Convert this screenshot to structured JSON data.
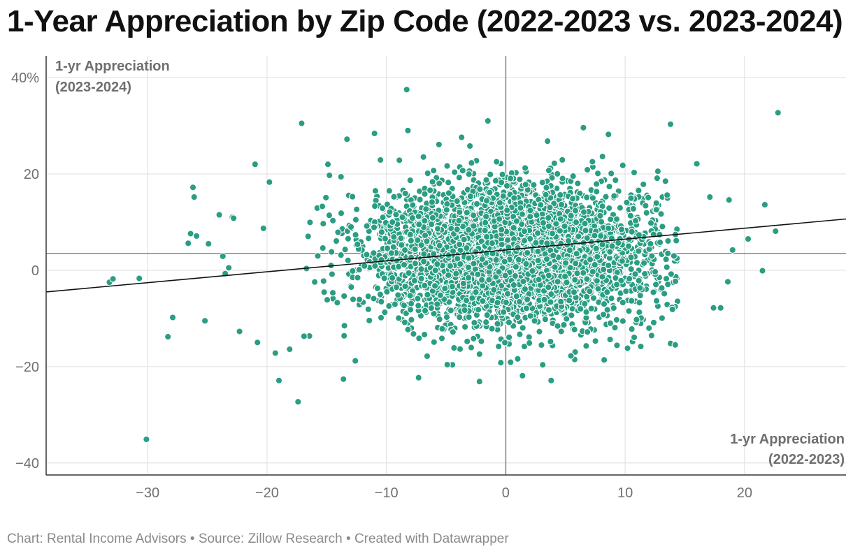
{
  "title": "1-Year Appreciation by Zip Code (2022-2023 vs. 2023-2024)",
  "footer": "Chart: Rental Income Advisors • Source: Zillow Research • Created with Datawrapper",
  "colors": {
    "point_fill": "#2a9d82",
    "point_stroke": "#ffffff",
    "grid": "#e3e3e3",
    "zero_line": "#888888",
    "mean_line": "#888888",
    "trend_line": "#111111",
    "axis": "#333333"
  },
  "chart_data": {
    "type": "scatter",
    "title": "1-Year Appreciation by Zip Code (2022-2023 vs. 2023-2024)",
    "xlabel": [
      "1-yr Appreciation",
      "(2022-2023)"
    ],
    "ylabel": [
      "1-yr Appreciation",
      "(2023-2024)"
    ],
    "xlim": [
      -38.5,
      28.5
    ],
    "ylim": [
      -42.5,
      44.5
    ],
    "x_ticks": [
      -30,
      -20,
      -10,
      0,
      10,
      20
    ],
    "x_tick_labels": [
      "−30",
      "−20",
      "−10",
      "0",
      "10",
      "20"
    ],
    "y_ticks": [
      40,
      20,
      0,
      -20,
      -40
    ],
    "y_tick_labels": [
      "40%",
      "20",
      "0",
      "−20",
      "−40"
    ],
    "grid": true,
    "mean_y_line": 3.5,
    "trend_line": {
      "slope": 0.226,
      "intercept": 4.2
    },
    "cloud": {
      "count": 4200,
      "center_x": 0.5,
      "center_y": 3.5,
      "sd_x": 6.0,
      "sd_y": 7.0,
      "seed": 7
    },
    "points": [
      [
        -33.2,
        -2.5
      ],
      [
        -32.9,
        -1.8
      ],
      [
        -30.7,
        -1.7
      ],
      [
        -30.1,
        -35.1
      ],
      [
        -28.3,
        -13.8
      ],
      [
        -27.9,
        -9.8
      ],
      [
        -26.6,
        5.6
      ],
      [
        -26.4,
        7.6
      ],
      [
        -26.2,
        17.2
      ],
      [
        -26.1,
        15.2
      ],
      [
        -25.9,
        7.1
      ],
      [
        -25.2,
        -10.5
      ],
      [
        -24.9,
        5.5
      ],
      [
        -24.0,
        11.5
      ],
      [
        -23.7,
        2.9
      ],
      [
        -23.5,
        -0.7
      ],
      [
        -23.2,
        0.5
      ],
      [
        -22.9,
        11.0
      ],
      [
        -22.8,
        10.8
      ],
      [
        -22.3,
        -12.7
      ],
      [
        -21.0,
        22.0
      ],
      [
        -20.8,
        -15.0
      ],
      [
        -20.3,
        8.7
      ],
      [
        -19.8,
        18.3
      ],
      [
        -19.3,
        -17.2
      ],
      [
        -19.0,
        -22.9
      ],
      [
        -18.1,
        -16.4
      ],
      [
        -17.4,
        -27.3
      ],
      [
        -17.1,
        30.5
      ],
      [
        -16.9,
        -13.7
      ],
      [
        -14.9,
        22.0
      ],
      [
        -13.6,
        -22.6
      ],
      [
        -13.3,
        27.2
      ],
      [
        -12.6,
        -18.8
      ],
      [
        -11.0,
        28.4
      ],
      [
        -10.5,
        22.9
      ],
      [
        -8.3,
        37.5
      ],
      [
        -8.2,
        29.0
      ],
      [
        -7.3,
        -22.3
      ],
      [
        -6.9,
        23.5
      ],
      [
        -5.6,
        26.1
      ],
      [
        -4.9,
        -19.6
      ],
      [
        -3.7,
        27.6
      ],
      [
        -3.0,
        25.8
      ],
      [
        -2.2,
        -23.1
      ],
      [
        -1.5,
        31.0
      ],
      [
        0.4,
        -19.1
      ],
      [
        1.0,
        -18.4
      ],
      [
        1.4,
        -21.9
      ],
      [
        3.5,
        26.8
      ],
      [
        3.8,
        -22.9
      ],
      [
        6.5,
        29.6
      ],
      [
        8.6,
        28.2
      ],
      [
        8.1,
        23.6
      ],
      [
        10.2,
        -16.2
      ],
      [
        13.8,
        30.3
      ],
      [
        13.8,
        -15.2
      ],
      [
        14.2,
        -15.5
      ],
      [
        16.0,
        22.1
      ],
      [
        17.4,
        -7.8
      ],
      [
        18.0,
        -7.8
      ],
      [
        18.7,
        14.6
      ],
      [
        20.3,
        6.5
      ],
      [
        21.5,
        -0.1
      ],
      [
        21.7,
        13.6
      ],
      [
        22.6,
        8.1
      ],
      [
        22.8,
        32.7
      ],
      [
        18.6,
        -2.4
      ],
      [
        19.0,
        4.2
      ],
      [
        17.1,
        15.2
      ]
    ]
  }
}
